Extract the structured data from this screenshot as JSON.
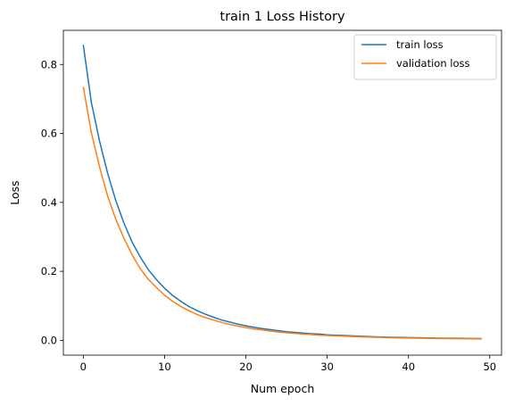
{
  "chart_data": {
    "type": "line",
    "title": "train 1 Loss History",
    "xlabel": "Num epoch",
    "ylabel": "Loss",
    "xlim": [
      -2.45,
      51.45
    ],
    "ylim": [
      -0.043,
      0.899
    ],
    "xticks": [
      0,
      10,
      20,
      30,
      40,
      50
    ],
    "xtick_labels": [
      "0",
      "10",
      "20",
      "30",
      "40",
      "50"
    ],
    "yticks": [
      0.0,
      0.2,
      0.4,
      0.6,
      0.8
    ],
    "ytick_labels": [
      "0.0",
      "0.2",
      "0.4",
      "0.6",
      "0.8"
    ],
    "grid": false,
    "legend_position": "top-right",
    "x": [
      0,
      1,
      2,
      3,
      4,
      5,
      6,
      7,
      8,
      9,
      10,
      11,
      12,
      13,
      14,
      15,
      16,
      17,
      18,
      19,
      20,
      21,
      22,
      23,
      24,
      25,
      26,
      27,
      28,
      29,
      30,
      31,
      32,
      33,
      34,
      35,
      36,
      37,
      38,
      39,
      40,
      41,
      42,
      43,
      44,
      45,
      46,
      47,
      48,
      49
    ],
    "series": [
      {
        "name": "train loss",
        "color": "#1f77b4",
        "values": [
          0.857,
          0.689,
          0.578,
          0.484,
          0.405,
          0.34,
          0.285,
          0.242,
          0.205,
          0.176,
          0.151,
          0.13,
          0.113,
          0.098,
          0.086,
          0.076,
          0.067,
          0.059,
          0.053,
          0.047,
          0.042,
          0.038,
          0.034,
          0.031,
          0.028,
          0.025,
          0.023,
          0.021,
          0.019,
          0.018,
          0.016,
          0.015,
          0.014,
          0.013,
          0.012,
          0.011,
          0.01,
          0.0095,
          0.0089,
          0.0083,
          0.0078,
          0.0074,
          0.007,
          0.0066,
          0.0063,
          0.006,
          0.0057,
          0.0054,
          0.0052,
          0.005
        ]
      },
      {
        "name": "validation loss",
        "color": "#ff7f0e",
        "values": [
          0.735,
          0.601,
          0.503,
          0.418,
          0.351,
          0.296,
          0.248,
          0.208,
          0.177,
          0.153,
          0.131,
          0.113,
          0.098,
          0.086,
          0.075,
          0.066,
          0.059,
          0.052,
          0.046,
          0.041,
          0.037,
          0.033,
          0.03,
          0.027,
          0.024,
          0.022,
          0.02,
          0.018,
          0.017,
          0.015,
          0.014,
          0.013,
          0.012,
          0.011,
          0.01,
          0.0093,
          0.0086,
          0.008,
          0.0074,
          0.0069,
          0.0065,
          0.0061,
          0.0057,
          0.0054,
          0.0051,
          0.0048,
          0.0046,
          0.0044,
          0.0042,
          0.004
        ]
      }
    ]
  }
}
